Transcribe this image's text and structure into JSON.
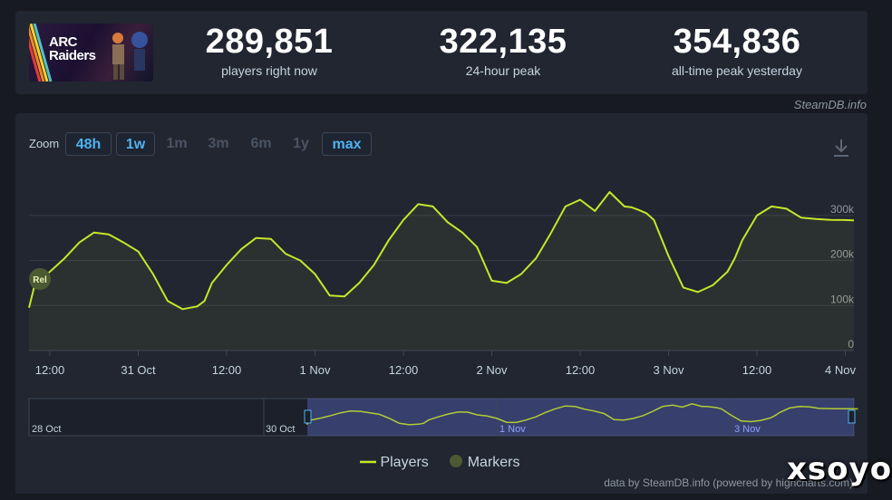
{
  "game": {
    "cover_title_line1": "ARC",
    "cover_title_line2": "Raiders"
  },
  "stats": [
    {
      "value": "289,851",
      "label": "players right now"
    },
    {
      "value": "322,135",
      "label": "24-hour peak"
    },
    {
      "value": "354,836",
      "label": "all-time peak yesterday"
    }
  ],
  "credit_top": "SteamDB.info",
  "zoom": {
    "label": "Zoom",
    "buttons": [
      {
        "label": "48h",
        "active": true
      },
      {
        "label": "1w",
        "active": true
      },
      {
        "label": "1m",
        "active": false
      },
      {
        "label": "3m",
        "active": false
      },
      {
        "label": "6m",
        "active": false
      },
      {
        "label": "1y",
        "active": false
      },
      {
        "label": "max",
        "active": true
      }
    ]
  },
  "download_icon": "download-icon",
  "chart_data": {
    "type": "line",
    "series": [
      {
        "name": "Players",
        "color": "#c6e62a",
        "x": [
          "2025-10-30T09:00",
          "2025-10-30T10:00",
          "2025-10-30T12:00",
          "2025-10-30T14:00",
          "2025-10-30T16:00",
          "2025-10-30T18:00",
          "2025-10-30T20:00",
          "2025-10-30T22:00",
          "2025-10-31T00:00",
          "2025-10-31T02:00",
          "2025-10-31T04:00",
          "2025-10-31T06:00",
          "2025-10-31T08:00",
          "2025-10-31T09:00",
          "2025-10-31T10:00",
          "2025-10-31T12:00",
          "2025-10-31T14:00",
          "2025-10-31T16:00",
          "2025-10-31T18:00",
          "2025-10-31T20:00",
          "2025-10-31T22:00",
          "2025-11-01T00:00",
          "2025-11-01T02:00",
          "2025-11-01T04:00",
          "2025-11-01T06:00",
          "2025-11-01T08:00",
          "2025-11-01T10:00",
          "2025-11-01T12:00",
          "2025-11-01T14:00",
          "2025-11-01T16:00",
          "2025-11-01T18:00",
          "2025-11-01T20:00",
          "2025-11-01T22:00",
          "2025-11-02T00:00",
          "2025-11-02T02:00",
          "2025-11-02T04:00",
          "2025-11-02T06:00",
          "2025-11-02T08:00",
          "2025-11-02T09:00",
          "2025-11-02T10:00",
          "2025-11-02T12:00",
          "2025-11-02T14:00",
          "2025-11-02T16:00",
          "2025-11-02T18:00",
          "2025-11-02T19:00",
          "2025-11-02T20:00",
          "2025-11-02T21:00",
          "2025-11-02T22:00",
          "2025-11-03T00:00",
          "2025-11-03T02:00",
          "2025-11-03T04:00",
          "2025-11-03T06:00",
          "2025-11-03T08:00",
          "2025-11-03T09:00",
          "2025-11-03T10:00",
          "2025-11-03T12:00",
          "2025-11-03T14:00",
          "2025-11-03T16:00",
          "2025-11-03T18:00",
          "2025-11-03T20:00",
          "2025-11-03T22:00",
          "2025-11-04T00:00",
          "2025-11-04T01:00",
          "2025-11-04T02:00"
        ],
        "values": [
          95000,
          150000,
          175000,
          205000,
          240000,
          262000,
          258000,
          240000,
          220000,
          170000,
          110000,
          92000,
          98000,
          110000,
          150000,
          190000,
          225000,
          250000,
          248000,
          215000,
          200000,
          170000,
          122000,
          120000,
          150000,
          190000,
          245000,
          290000,
          325000,
          320000,
          285000,
          262000,
          230000,
          155000,
          150000,
          170000,
          205000,
          260000,
          290000,
          320000,
          335000,
          310000,
          352000,
          320000,
          318000,
          312000,
          305000,
          290000,
          210000,
          140000,
          130000,
          145000,
          175000,
          205000,
          245000,
          300000,
          320000,
          315000,
          295000,
          292000,
          290000,
          289851,
          289000,
          289000
        ]
      }
    ],
    "markers": [
      {
        "label": "Rel"
      }
    ],
    "x_ticks": [
      "12:00",
      "31 Oct",
      "12:00",
      "1 Nov",
      "12:00",
      "2 Nov",
      "12:00",
      "3 Nov",
      "12:00",
      "4 Nov"
    ],
    "y_ticks": [
      "0",
      "100k",
      "200k",
      "300k"
    ],
    "ylim": [
      0,
      350000
    ],
    "navigator_labels": [
      "28 Oct",
      "30 Oct",
      "1 Nov",
      "3 Nov"
    ],
    "grid": true,
    "legend": [
      "Players",
      "Markers"
    ],
    "legend_position": "bottom-center"
  },
  "legend": {
    "players": "Players",
    "markers": "Markers"
  },
  "credit_bottom": "data by SteamDB.info (powered by highcharts.com)",
  "watermark": "xsoyo"
}
